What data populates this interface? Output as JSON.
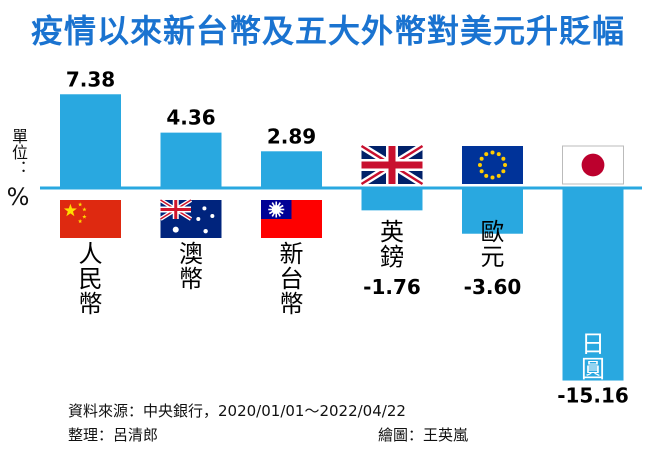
{
  "chart_data": {
    "type": "bar",
    "title": "疫情以來新台幣及五大外幣對美元升貶幅",
    "unit_label": "單位：",
    "unit_symbol": "%",
    "categories": [
      "人民幣",
      "澳幣",
      "新台幣",
      "英鎊",
      "歐元",
      "日圓"
    ],
    "values": [
      7.38,
      4.36,
      2.89,
      -1.76,
      -3.6,
      -15.16
    ],
    "value_labels": [
      "7.38",
      "4.36",
      "2.89",
      "-1.76",
      "-3.60",
      "-15.16"
    ],
    "flags": [
      "china-flag",
      "australia-flag",
      "taiwan-flag",
      "uk-flag",
      "eu-flag",
      "japan-flag"
    ],
    "ylim": [
      -16,
      8
    ],
    "bar_color": "#29a8e0",
    "baseline_color": "#29a8e0"
  },
  "source": "資料來源：中央銀行，2020/01/01～2022/04/22",
  "organizer": "整理：呂清郎",
  "drawer": "繪圖：王英嵐"
}
